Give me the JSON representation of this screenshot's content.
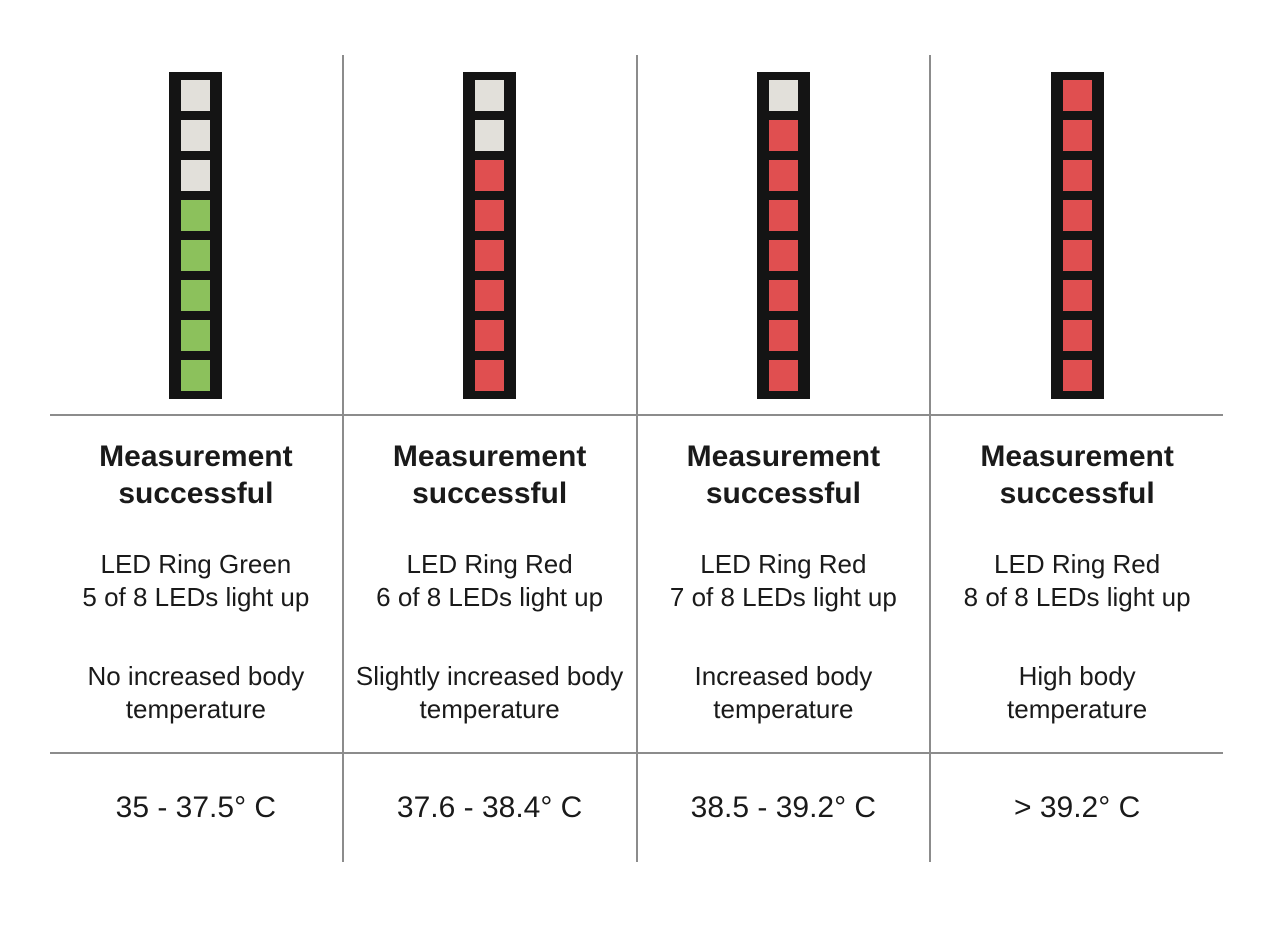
{
  "colors": {
    "led_off": "#e2e0da",
    "led_green": "#8cc15c",
    "led_red": "#e04f50",
    "frame": "#141414",
    "divider": "#8c8c8c",
    "text": "#1a1a1a"
  },
  "columns": [
    {
      "heading": "Measurement\nsuccessful",
      "led_text": "LED Ring Green\n5 of 8 LEDs light up",
      "temp_text": "No increased body\ntemperature",
      "range": "35 - 37.5° C",
      "leds": {
        "total": 8,
        "off": 3,
        "on": 5,
        "on_color_name": "green"
      }
    },
    {
      "heading": "Measurement\nsuccessful",
      "led_text": "LED Ring Red\n6 of 8 LEDs light up",
      "temp_text": "Slightly increased body\ntemperature",
      "range": "37.6 - 38.4° C",
      "leds": {
        "total": 8,
        "off": 2,
        "on": 6,
        "on_color_name": "red"
      }
    },
    {
      "heading": "Measurement\nsuccessful",
      "led_text": "LED Ring Red\n7 of 8 LEDs light up",
      "temp_text": "Increased body\ntemperature",
      "range": "38.5 - 39.2° C",
      "leds": {
        "total": 8,
        "off": 1,
        "on": 7,
        "on_color_name": "red"
      }
    },
    {
      "heading": "Measurement\nsuccessful",
      "led_text": "LED Ring Red\n8 of 8 LEDs light up",
      "temp_text": "High body\ntemperature",
      "range": "> 39.2° C",
      "leds": {
        "total": 8,
        "off": 0,
        "on": 8,
        "on_color_name": "red"
      }
    }
  ]
}
